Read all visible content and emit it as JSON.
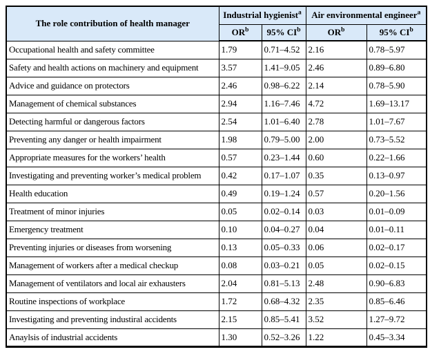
{
  "colors": {
    "header_bg": "#d9e9f9",
    "border": "#000000",
    "page_bg": "#ffffff"
  },
  "table": {
    "role_column_title": "The role contribution of health manager",
    "group_headers": [
      {
        "text": "Industrial hygienist",
        "sup": "a"
      },
      {
        "text": "Air environmental engineer",
        "sup": "a"
      }
    ],
    "sub_headers": {
      "or_label": "OR",
      "or_sup": "b",
      "ci_label": "95% CI",
      "ci_sup": "b"
    },
    "rows": [
      {
        "role": "Occupational health and safety committee",
        "ih_or": "1.79",
        "ih_ci": "0.71–4.52",
        "ae_or": "2.16",
        "ae_ci": "0.78–5.97"
      },
      {
        "role": "Safety and health actions on machinery and equipment",
        "ih_or": "3.57",
        "ih_ci": "1.41–9.05",
        "ae_or": "2.46",
        "ae_ci": "0.89–6.80"
      },
      {
        "role": "Advice and guidance on protectors",
        "ih_or": "2.46",
        "ih_ci": "0.98–6.22",
        "ae_or": "2.14",
        "ae_ci": "0.78–5.90"
      },
      {
        "role": "Management of chemical substances",
        "ih_or": "2.94",
        "ih_ci": "1.16–7.46",
        "ae_or": "4.72",
        "ae_ci": "1.69–13.17"
      },
      {
        "role": "Detecting harmful or dangerous factors",
        "ih_or": "2.54",
        "ih_ci": "1.01–6.40",
        "ae_or": "2.78",
        "ae_ci": "1.01–7.67"
      },
      {
        "role": "Preventing any danger or health impairment",
        "ih_or": "1.98",
        "ih_ci": "0.79–5.00",
        "ae_or": "2.00",
        "ae_ci": "0.73–5.52"
      },
      {
        "role": "Appropriate measures for the workers’ health",
        "ih_or": "0.57",
        "ih_ci": "0.23–1.44",
        "ae_or": "0.60",
        "ae_ci": "0.22–1.66"
      },
      {
        "role": "Investigating and preventing worker’s medical problem",
        "ih_or": "0.42",
        "ih_ci": "0.17–1.07",
        "ae_or": "0.35",
        "ae_ci": "0.13–0.97"
      },
      {
        "role": "Health education",
        "ih_or": "0.49",
        "ih_ci": "0.19–1.24",
        "ae_or": "0.57",
        "ae_ci": "0.20–1.56"
      },
      {
        "role": "Treatment of minor injuries",
        "ih_or": "0.05",
        "ih_ci": "0.02–0.14",
        "ae_or": "0.03",
        "ae_ci": "0.01–0.09"
      },
      {
        "role": "Emergency treatment",
        "ih_or": "0.10",
        "ih_ci": "0.04–0.27",
        "ae_or": "0.04",
        "ae_ci": "0.01–0.11"
      },
      {
        "role": "Preventing injuries or diseases from worsening",
        "ih_or": "0.13",
        "ih_ci": "0.05–0.33",
        "ae_or": "0.06",
        "ae_ci": "0.02–0.17"
      },
      {
        "role": "Management of workers after a medical checkup",
        "ih_or": "0.08",
        "ih_ci": "0.03–0.21",
        "ae_or": "0.05",
        "ae_ci": "0.02–0.15"
      },
      {
        "role": "Management of ventilators and local air exhausters",
        "ih_or": "2.04",
        "ih_ci": "0.81–5.13",
        "ae_or": "2.48",
        "ae_ci": "0.90–6.83"
      },
      {
        "role": "Routine inspections of workplace",
        "ih_or": "1.72",
        "ih_ci": "0.68–4.32",
        "ae_or": "2.35",
        "ae_ci": "0.85–6.46"
      },
      {
        "role": "Investigating and preventing industiral accidents",
        "ih_or": "2.15",
        "ih_ci": "0.85–5.41",
        "ae_or": "3.52",
        "ae_ci": "1.27–9.72"
      },
      {
        "role": "Anaylsis of industrial accidents",
        "ih_or": "1.30",
        "ih_ci": "0.52–3.26",
        "ae_or": "1.22",
        "ae_ci": "0.45–3.34"
      }
    ]
  },
  "chart_data": {
    "type": "table",
    "title": "The role contribution of health manager — odds ratios",
    "columns": [
      "Role",
      "Industrial hygienist OR",
      "Industrial hygienist 95% CI",
      "Air environmental engineer OR",
      "Air environmental engineer 95% CI"
    ],
    "notes": [
      "superscript a on group headers",
      "superscript b on OR and 95% CI"
    ]
  }
}
